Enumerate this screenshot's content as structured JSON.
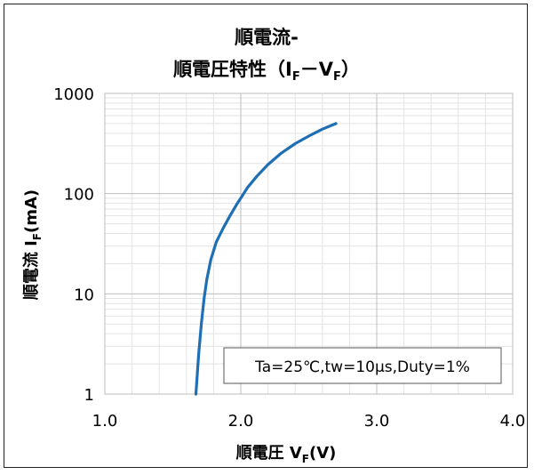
{
  "chart_data": {
    "type": "line",
    "title_line1": "順電流-",
    "title_line2": "順電圧特性（IF－VF）",
    "title_parts": {
      "main": "順電圧特性（I",
      "sub1": "F",
      "dash": "－V",
      "sub2": "F",
      "close": "）"
    },
    "xlabel": {
      "main": "順電圧 V",
      "sub": "F",
      "tail": "(V)"
    },
    "ylabel": {
      "main": "順電流 I",
      "sub": "F",
      "tail": "(mA)"
    },
    "x_ticks": [
      "1.0",
      "2.0",
      "3.0",
      "4.0"
    ],
    "y_ticks": [
      "1",
      "10",
      "100",
      "1000"
    ],
    "xlim": [
      1.0,
      4.0
    ],
    "ylim": [
      1,
      1000
    ],
    "y_scale": "log",
    "grid": true,
    "annotation": "Ta=25℃,tw=10μs,Duty=1%",
    "series": [
      {
        "color": "#1f6fb5",
        "x": [
          1.67,
          1.69,
          1.71,
          1.73,
          1.75,
          1.78,
          1.82,
          1.87,
          1.92,
          1.97,
          2.0,
          2.05,
          2.12,
          2.2,
          2.3,
          2.4,
          2.5,
          2.6,
          2.7
        ],
        "y": [
          1,
          2.5,
          5,
          9,
          14,
          22,
          33,
          45,
          60,
          78,
          90,
          115,
          150,
          195,
          255,
          315,
          375,
          440,
          500
        ]
      }
    ]
  }
}
